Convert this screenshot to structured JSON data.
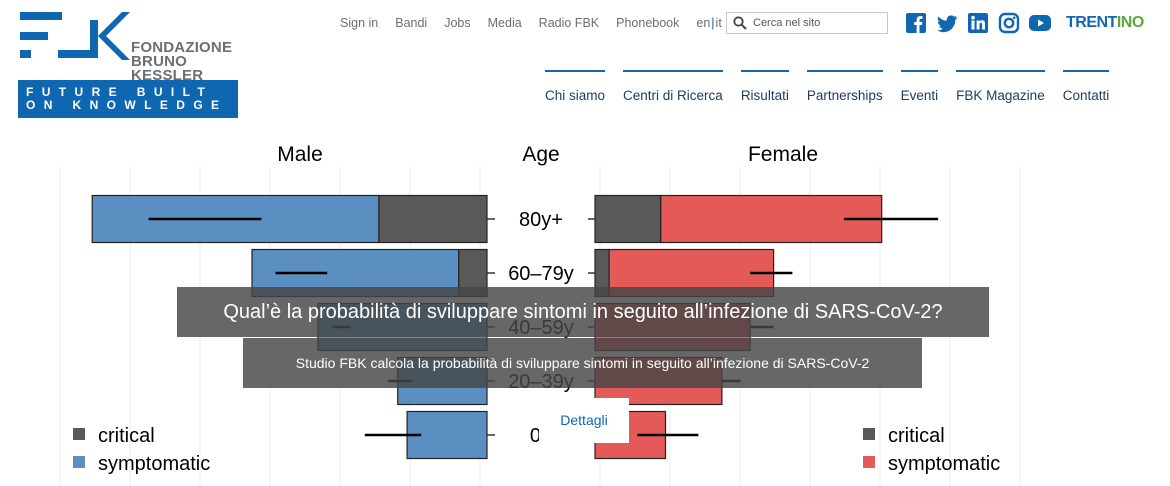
{
  "logo": {
    "line1": "FONDAZIONE",
    "line2": "BRUNO KESSLER",
    "tagline1": "FUTURE BUILT",
    "tagline2": "ON KNOWLEDGE",
    "brand_color": "#1067b1"
  },
  "util_nav": {
    "items": [
      "Sign in",
      "Bandi",
      "Jobs",
      "Media",
      "Radio FBK",
      "Phonebook"
    ]
  },
  "lang": {
    "en": "en",
    "it": "it"
  },
  "search": {
    "placeholder": "Cerca nel sito",
    "icon": "search-icon"
  },
  "social": [
    "facebook-icon",
    "twitter-icon",
    "linkedin-icon",
    "instagram-icon",
    "youtube-icon"
  ],
  "trentino": {
    "part1": "TRENT",
    "part2": "INO"
  },
  "main_nav": {
    "items": [
      "Chi siamo",
      "Centri di Ricerca",
      "Risultati",
      "Partnerships",
      "Eventi",
      "FBK Magazine",
      "Contatti"
    ]
  },
  "hero": {
    "headline": "Qual’è la probabilità di sviluppare sintomi in seguito all’infezione di SARS-CoV-2?",
    "subheadline": "Studio FBK calcola la probabilità di sviluppare sintomi in seguito all’infezione di SARS-CoV-2",
    "button": "Dettagli"
  },
  "chart_data": {
    "type": "bar",
    "titles": {
      "male": "Male",
      "age": "Age",
      "female": "Female"
    },
    "categories": [
      "80y+",
      "60–79y",
      "40–59y",
      "20–39y",
      "0–"
    ],
    "male": {
      "symptomatic": [
        0.61,
        0.44,
        0.36,
        0.19,
        0.17
      ],
      "critical": [
        0.23,
        0.06,
        0.0,
        0.0,
        0.0
      ],
      "whisker_low": [
        0.72,
        0.45,
        0.33,
        0.21,
        0.26
      ],
      "whisker_high": [
        0.48,
        0.34,
        0.29,
        0.16,
        0.14
      ]
    },
    "female": {
      "symptomatic": [
        0.47,
        0.35,
        0.33,
        0.27,
        0.15
      ],
      "critical": [
        0.14,
        0.03,
        0.0,
        0.0,
        0.0
      ],
      "whisker_low": [
        0.53,
        0.33,
        0.33,
        0.27,
        0.09
      ],
      "whisker_high": [
        0.73,
        0.42,
        0.38,
        0.31,
        0.22
      ]
    },
    "legend": {
      "critical": "critical",
      "symptomatic": "symptomatic"
    },
    "colors": {
      "male_symptomatic": "#5b8fc1",
      "female_symptomatic": "#e45a58",
      "critical": "#595959"
    }
  }
}
